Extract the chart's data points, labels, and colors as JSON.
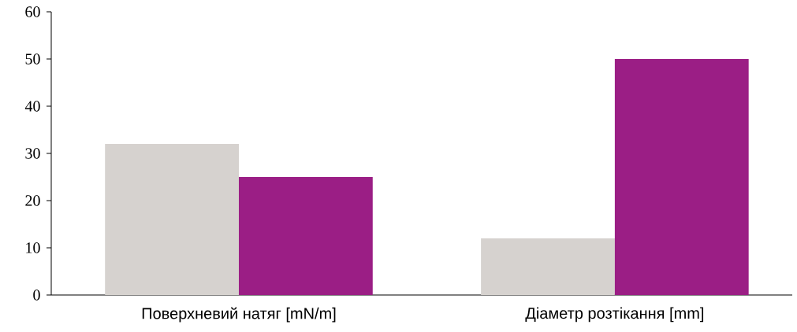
{
  "chart_data": {
    "type": "bar",
    "categories": [
      "Поверхневий натяг [mN/m]",
      "Діаметр розтікання [mm]"
    ],
    "series": [
      {
        "color": "#d6d2cf",
        "values": [
          32,
          12
        ]
      },
      {
        "color": "#9b1e85",
        "values": [
          25,
          50
        ]
      }
    ],
    "ylim": [
      0,
      60
    ],
    "yticks": [
      0,
      10,
      20,
      30,
      40,
      50,
      60
    ],
    "grid": false
  }
}
